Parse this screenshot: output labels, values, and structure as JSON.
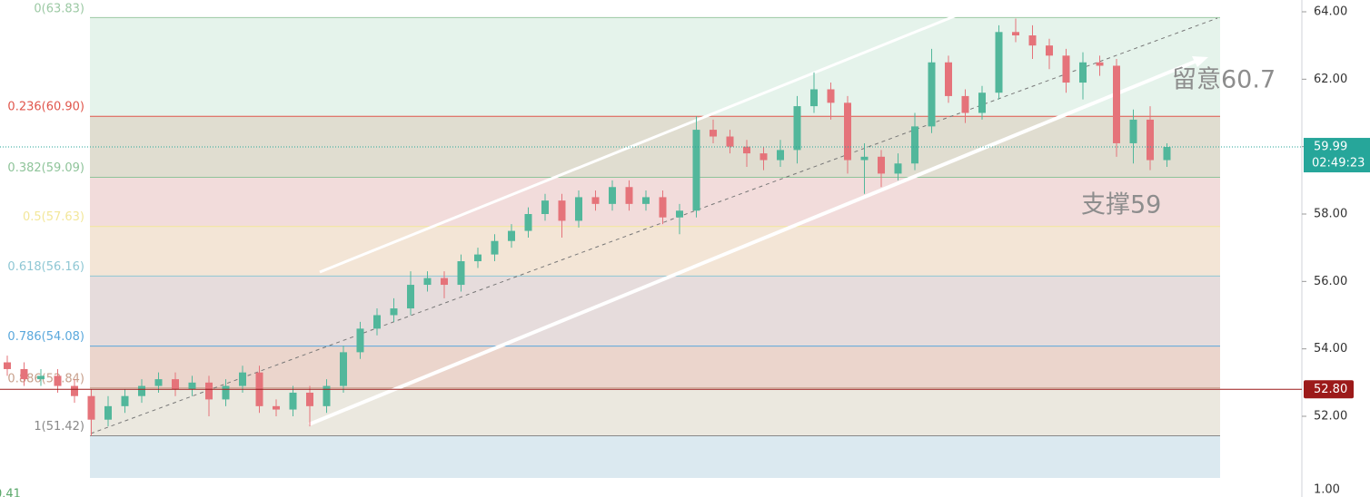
{
  "chart_data": {
    "type": "candlestick",
    "ylim": [
      50.17,
      64.35
    ],
    "yticks": [
      {
        "value": 64,
        "label": "64.00"
      },
      {
        "value": 62,
        "label": "62.00"
      },
      {
        "value": 60,
        "label": "60.00"
      },
      {
        "value": 58,
        "label": "58.00"
      },
      {
        "value": 56,
        "label": "56.00"
      },
      {
        "value": 54,
        "label": "54.00"
      },
      {
        "value": 52,
        "label": "52.00"
      }
    ],
    "up_color": "#52b79b",
    "down_color": "#e5737a",
    "open": [
      53.6,
      53.4,
      53.1,
      53.2,
      52.9,
      52.6,
      51.9,
      52.3,
      52.6,
      52.9,
      53.1,
      52.8,
      53.0,
      52.5,
      52.9,
      53.3,
      52.3,
      52.2,
      52.7,
      52.3,
      52.9,
      53.9,
      54.6,
      55.0,
      55.2,
      55.9,
      56.1,
      55.9,
      56.6,
      56.8,
      57.2,
      57.5,
      58.0,
      58.4,
      57.8,
      58.5,
      58.3,
      58.8,
      58.3,
      58.5,
      57.9,
      58.1,
      60.5,
      60.3,
      60.0,
      59.8,
      59.6,
      59.9,
      61.2,
      61.7,
      61.3,
      59.6,
      59.7,
      59.2,
      59.5,
      60.6,
      62.5,
      61.5,
      61.0,
      61.6,
      63.4,
      63.3,
      63.0,
      62.7,
      61.9,
      62.5,
      62.4,
      60.1,
      60.8,
      59.6
    ],
    "high": [
      53.8,
      53.6,
      53.4,
      53.4,
      53.1,
      52.8,
      52.6,
      52.8,
      53.1,
      53.3,
      53.3,
      53.2,
      53.2,
      53.1,
      53.5,
      53.5,
      52.5,
      52.9,
      52.9,
      53.1,
      54.1,
      54.8,
      55.2,
      55.5,
      56.3,
      56.3,
      56.3,
      56.8,
      57.0,
      57.4,
      57.7,
      58.2,
      58.6,
      58.6,
      58.7,
      58.7,
      59.0,
      59.0,
      58.7,
      58.7,
      58.3,
      60.9,
      60.8,
      60.5,
      60.2,
      60.0,
      60.2,
      61.5,
      62.2,
      61.9,
      61.5,
      60.1,
      59.9,
      59.8,
      61.0,
      62.9,
      62.7,
      61.7,
      61.8,
      63.6,
      63.8,
      63.6,
      63.2,
      62.9,
      62.8,
      62.7,
      62.6,
      61.1,
      61.2,
      60.1
    ],
    "low": [
      53.2,
      52.9,
      52.9,
      52.7,
      52.4,
      51.42,
      51.7,
      52.1,
      52.4,
      52.7,
      52.6,
      52.6,
      52.0,
      52.3,
      52.7,
      52.1,
      52.0,
      52.0,
      51.7,
      52.1,
      52.7,
      53.7,
      54.4,
      54.8,
      55.0,
      55.7,
      55.5,
      55.7,
      56.4,
      56.6,
      57.0,
      57.3,
      57.8,
      57.3,
      57.6,
      58.1,
      58.1,
      58.1,
      58.1,
      57.7,
      57.4,
      57.9,
      60.1,
      59.8,
      59.4,
      59.3,
      59.4,
      59.5,
      61.0,
      60.8,
      59.2,
      58.6,
      58.8,
      59.0,
      59.3,
      60.4,
      61.3,
      60.7,
      60.8,
      61.4,
      63.1,
      62.6,
      62.3,
      61.6,
      61.4,
      62.1,
      59.7,
      59.5,
      59.3,
      59.4
    ],
    "close": [
      53.4,
      53.1,
      53.2,
      52.9,
      52.6,
      51.9,
      52.3,
      52.6,
      52.9,
      53.1,
      52.8,
      53.0,
      52.5,
      52.9,
      53.3,
      52.3,
      52.2,
      52.7,
      52.3,
      52.9,
      53.9,
      54.6,
      55.0,
      55.2,
      55.9,
      56.1,
      55.9,
      56.6,
      56.8,
      57.2,
      57.5,
      58.0,
      58.4,
      57.8,
      58.5,
      58.3,
      58.8,
      58.3,
      58.5,
      57.9,
      58.1,
      60.5,
      60.3,
      60.0,
      59.8,
      59.6,
      59.9,
      61.2,
      61.7,
      61.3,
      59.6,
      59.7,
      59.2,
      59.5,
      60.6,
      62.5,
      61.5,
      61.0,
      61.6,
      63.4,
      63.3,
      63.0,
      62.7,
      61.9,
      62.5,
      62.4,
      60.1,
      60.8,
      59.6,
      59.99
    ],
    "fib_levels": [
      {
        "value": 63.83,
        "label": "0(63.83)",
        "color": "#9cc9a4",
        "fill": "#e5f3eb"
      },
      {
        "value": 60.9,
        "label": "0.236(60.90)",
        "color": "#e0564c",
        "fill": "#e0ddd0"
      },
      {
        "value": 59.09,
        "label": "0.382(59.09)",
        "color": "#8fc49a",
        "fill": "#f2dcdb"
      },
      {
        "value": 57.63,
        "label": "0.5(57.63)",
        "color": "#f3e79a",
        "fill": "#f3e5d6"
      },
      {
        "value": 56.16,
        "label": "0.618(56.16)",
        "color": "#8fc7d4",
        "fill": "#e6dcdc"
      },
      {
        "value": 54.08,
        "label": "0.786(54.08)",
        "color": "#5aa8dc",
        "fill": "#ebd5cc"
      },
      {
        "value": 52.84,
        "label": "0.886(52.84)",
        "color": "#c8a08c",
        "fill": "#ebe8df"
      },
      {
        "value": 51.42,
        "label": "1(51.42)",
        "color": "#888888",
        "fill": "#dbe9f0"
      }
    ],
    "current_price": 59.99,
    "countdown": "02:49:23",
    "current_color": "#26a69a",
    "marked_price": {
      "value": 52.8,
      "label": "52.80"
    },
    "marked_color": "#9c1a1a",
    "annotations": [
      "留意60.7",
      "支撑59"
    ],
    "lower_pane_tick": "1.00",
    "lower_pane_value": "0.41"
  }
}
